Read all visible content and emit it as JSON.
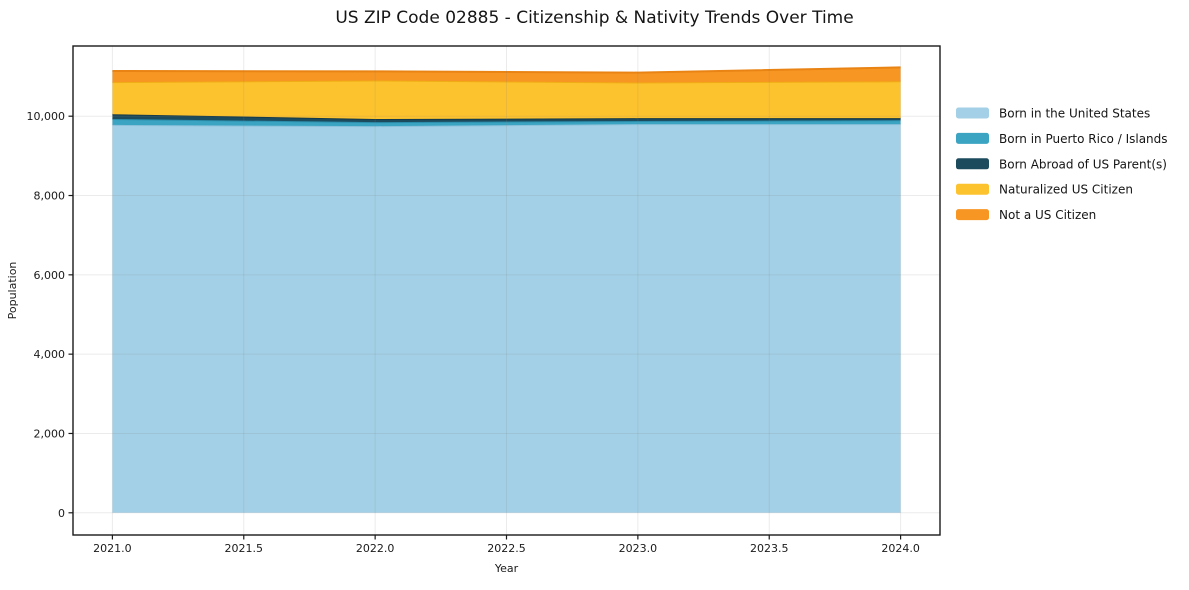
{
  "figure": {
    "title": "US ZIP Code 02885 - Citizenship & Nativity Trends Over Time",
    "background": "#ffffff"
  },
  "chart_data": {
    "type": "area",
    "stacked": true,
    "title": "US ZIP Code 02885 - Citizenship & Nativity Trends Over Time",
    "xlabel": "Year",
    "ylabel": "Population",
    "x": [
      2021,
      2022,
      2023,
      2024
    ],
    "xlim": [
      2020.85,
      2024.15
    ],
    "ylim": [
      -560,
      11770
    ],
    "xticks": {
      "values": [
        2021.0,
        2021.5,
        2022.0,
        2022.5,
        2023.0,
        2023.5,
        2024.0
      ],
      "labels": [
        "2021.0",
        "2021.5",
        "2022.0",
        "2022.5",
        "2023.0",
        "2023.5",
        "2024.0"
      ]
    },
    "yticks": {
      "values": [
        0,
        2000,
        4000,
        6000,
        8000,
        10000
      ],
      "labels": [
        "0",
        "2,000",
        "4,000",
        "6,000",
        "8,000",
        "10,000"
      ]
    },
    "grid": true,
    "grid_color": "rgba(128,128,128,0.16)",
    "spine_color": "#1a1a1a",
    "tick_label_color": "#1a1a1a",
    "legend_position": "outside-right-upper",
    "series": [
      {
        "name": "Born in the United States",
        "color": "#a3d0e6",
        "edge_color": "#8cc1db",
        "values": [
          9780,
          9750,
          9800,
          9800
        ]
      },
      {
        "name": "Born in Puerto Rico / Islands",
        "color": "#3ba4c2",
        "edge_color": "#2b8dab",
        "values": [
          150,
          100,
          80,
          100
        ]
      },
      {
        "name": "Born Abroad of US Parent(s)",
        "color": "#1d4b5e",
        "edge_color": "#153a49",
        "values": [
          120,
          80,
          70,
          50
        ]
      },
      {
        "name": "Naturalized US Citizen",
        "color": "#fdc32e",
        "edge_color": "#f0ad15",
        "values": [
          810,
          970,
          900,
          930
        ]
      },
      {
        "name": "Not a US Citizen",
        "color": "#f79622",
        "edge_color": "#e98414",
        "values": [
          280,
          230,
          250,
          350
        ]
      }
    ],
    "totals_by_year": [
      11140,
      11130,
      11100,
      11230
    ]
  }
}
